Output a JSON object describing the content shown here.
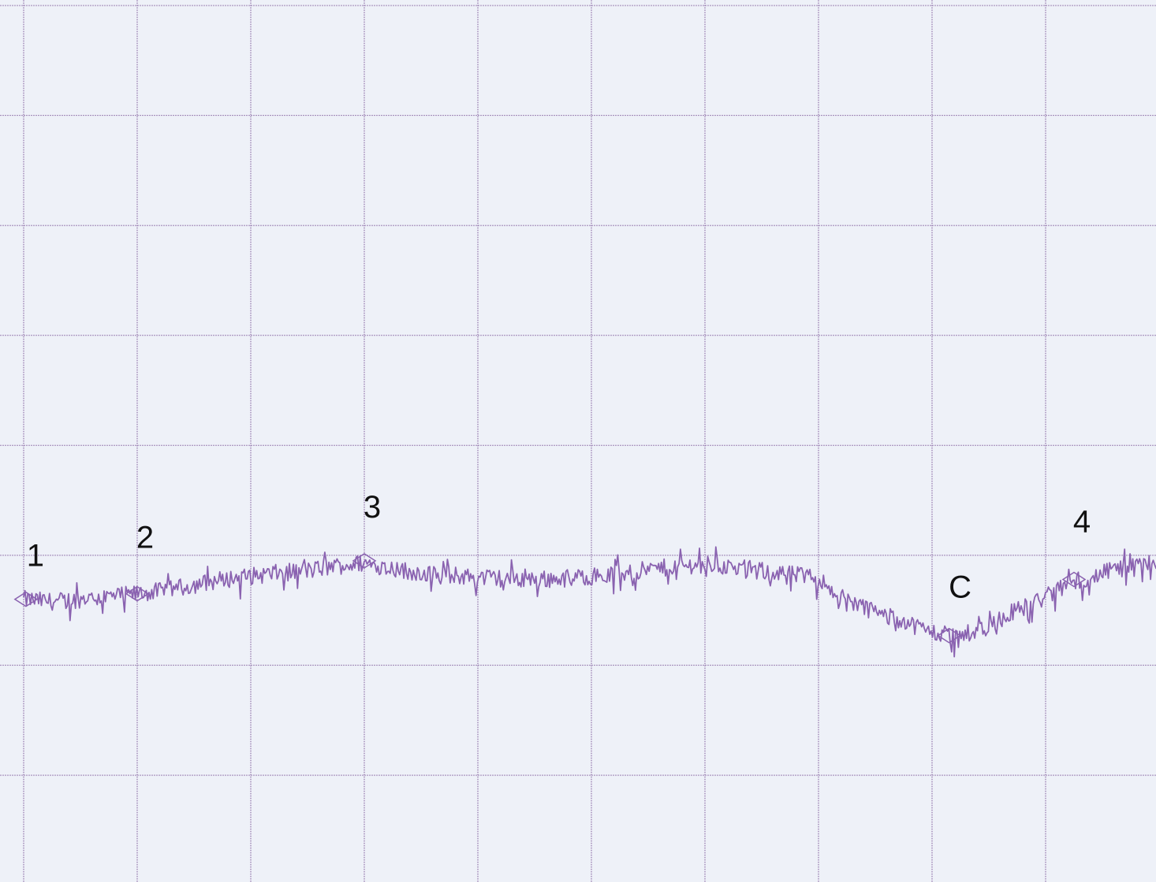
{
  "chart_data": {
    "type": "line",
    "title": "",
    "xlabel": "",
    "ylabel": "",
    "grid": true,
    "xlim": [
      0,
      10
    ],
    "ylim": [
      0,
      8
    ],
    "grid_divisions": {
      "x": 10,
      "y": 8
    },
    "colors": {
      "background": "#eef1f8",
      "grid": "#9f86b6",
      "trace": "#8a62b0",
      "label": "#111111"
    },
    "markers": [
      {
        "label": "1",
        "x": 0.02,
        "y": 2.6
      },
      {
        "label": "2",
        "x": 1.0,
        "y": 2.65
      },
      {
        "label": "3",
        "x": 3.0,
        "y": 2.95
      },
      {
        "label": "C",
        "x": 8.15,
        "y": 2.27
      },
      {
        "label": "4",
        "x": 9.25,
        "y": 2.78
      }
    ],
    "series": [
      {
        "values": [
          [
            0.0,
            2.6
          ],
          [
            0.25,
            2.58
          ],
          [
            0.5,
            2.6
          ],
          [
            0.75,
            2.62
          ],
          [
            1.0,
            2.65
          ],
          [
            1.25,
            2.68
          ],
          [
            1.5,
            2.73
          ],
          [
            1.75,
            2.78
          ],
          [
            2.0,
            2.81
          ],
          [
            2.25,
            2.84
          ],
          [
            2.5,
            2.86
          ],
          [
            2.75,
            2.9
          ],
          [
            3.0,
            2.93
          ],
          [
            3.25,
            2.88
          ],
          [
            3.5,
            2.84
          ],
          [
            3.75,
            2.82
          ],
          [
            4.0,
            2.8
          ],
          [
            4.25,
            2.79
          ],
          [
            4.5,
            2.78
          ],
          [
            4.75,
            2.79
          ],
          [
            5.0,
            2.81
          ],
          [
            5.25,
            2.83
          ],
          [
            5.5,
            2.87
          ],
          [
            5.75,
            2.9
          ],
          [
            6.0,
            2.92
          ],
          [
            6.25,
            2.89
          ],
          [
            6.5,
            2.86
          ],
          [
            6.75,
            2.83
          ],
          [
            7.0,
            2.79
          ],
          [
            7.25,
            2.6
          ],
          [
            7.5,
            2.48
          ],
          [
            7.75,
            2.4
          ],
          [
            8.0,
            2.3
          ],
          [
            8.15,
            2.27
          ],
          [
            8.3,
            2.28
          ],
          [
            8.5,
            2.38
          ],
          [
            8.75,
            2.5
          ],
          [
            9.0,
            2.62
          ],
          [
            9.25,
            2.76
          ],
          [
            9.5,
            2.84
          ],
          [
            9.75,
            2.89
          ],
          [
            9.98,
            2.95
          ]
        ]
      }
    ]
  }
}
